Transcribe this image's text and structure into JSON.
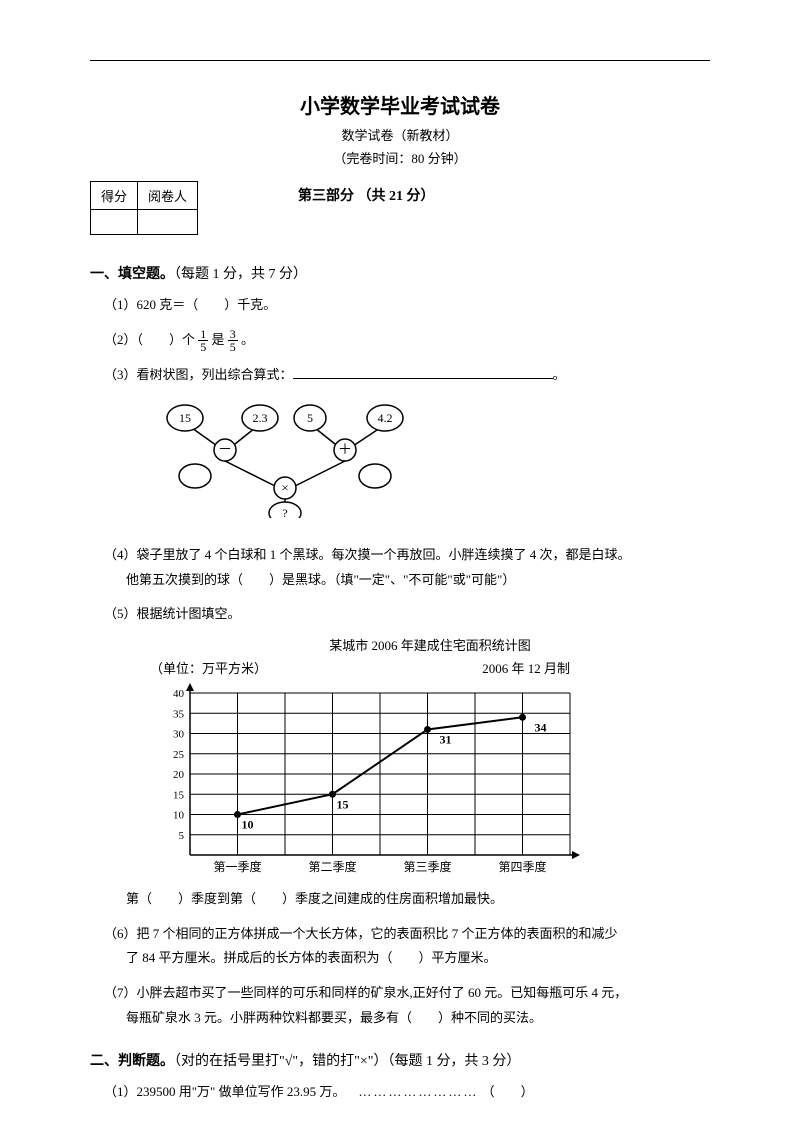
{
  "header": {
    "title": "小学数学毕业考试试卷",
    "subtitle1": "数学试卷（新教材）",
    "subtitle2": "（完卷时间：80 分钟）"
  },
  "score_table": {
    "h1": "得分",
    "h2": "阅卷人"
  },
  "part_title": "第三部分 （共 21 分）",
  "section1": {
    "heading": "一、填空题。",
    "heading_note": "（每题 1 分，共 7 分）",
    "q1": "（1）620 克＝（　　）千克。",
    "q2_a": "（2）（　　）个",
    "q2_b": "是",
    "q2_c": "。",
    "frac1_num": "1",
    "frac1_den": "5",
    "frac2_num": "3",
    "frac2_den": "5",
    "q3": "（3）看树状图，列出综合算式：",
    "q3_end": "。",
    "tree": {
      "n1": "15",
      "n2": "2.3",
      "n3": "5",
      "n4": "4.2",
      "op1": "－",
      "op2": "＋",
      "op3": "×",
      "qm": "?"
    },
    "q4_a": "（4）袋子里放了 4 个白球和 1 个黑球。每次摸一个再放回。小胖连续摸了 4 次，都是白球。",
    "q4_b": "他第五次摸到的球（　　）是黑球。（填\"一定\"、\"不可能\"或\"可能\"）",
    "q5": "（5）根据统计图填空。",
    "chart": {
      "title": "某城市 2006 年建成住宅面积统计图",
      "unit": "（单位：万平方米）",
      "date": "2006 年 12 月制",
      "ylim": [
        0,
        40
      ],
      "ytick_step": 5,
      "yticks": [
        "5",
        "10",
        "15",
        "20",
        "25",
        "30",
        "35",
        "40"
      ],
      "categories": [
        "第一季度",
        "第二季度",
        "第三季度",
        "第四季度"
      ],
      "values": [
        10,
        15,
        31,
        34
      ],
      "value_labels": [
        "10",
        "15",
        "31",
        "34"
      ],
      "line_color": "#000000",
      "grid_color": "#000000",
      "bg_color": "#ffffff"
    },
    "q5_b": "第（　　）季度到第（　　）季度之间建成的住房面积增加最快。",
    "q6_a": "（6）把 7 个相同的正方体拼成一个大长方体，它的表面积比 7 个正方体的表面积的和减少",
    "q6_b": "了 84 平方厘米。拼成后的长方体的表面积为（　　）平方厘米。",
    "q7_a": "（7）小胖去超市买了一些同样的可乐和同样的矿泉水,正好付了 60 元。已知每瓶可乐 4 元，",
    "q7_b": "每瓶矿泉水 3 元。小胖两种饮料都要买，最多有（　　）种不同的买法。"
  },
  "section2": {
    "heading": "二、判断题。",
    "heading_note": "（对的在括号里打\"√\"，错的打\"×\"）（每题 1 分，共 3 分）",
    "q1": "（1）239500 用\"万\" 做单位写作 23.95 万。",
    "dots": "……………………",
    "paren": "（　　）"
  }
}
